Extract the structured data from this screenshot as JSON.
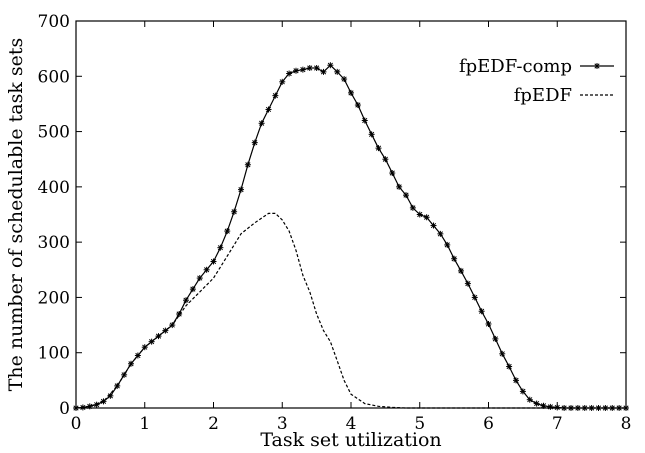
{
  "chart_data": {
    "type": "line",
    "xlabel": "Task set utilization",
    "ylabel": "The number of schedulable task sets",
    "xlim": [
      0,
      8
    ],
    "ylim": [
      0,
      700
    ],
    "xticks": [
      "0",
      "1",
      "2",
      "3",
      "4",
      "5",
      "6",
      "7",
      "8"
    ],
    "yticks": [
      "0",
      "100",
      "200",
      "300",
      "400",
      "500",
      "600",
      "700"
    ],
    "grid": false,
    "legend_position": "top-right",
    "series": [
      {
        "name": "fpEDF-comp",
        "style": "solid-with-star-markers",
        "color": "#000000",
        "x": [
          0,
          0.1,
          0.2,
          0.3,
          0.4,
          0.5,
          0.6,
          0.7,
          0.8,
          0.9,
          1.0,
          1.1,
          1.2,
          1.3,
          1.4,
          1.5,
          1.6,
          1.7,
          1.8,
          1.9,
          2.0,
          2.1,
          2.2,
          2.3,
          2.4,
          2.5,
          2.6,
          2.7,
          2.8,
          2.9,
          3.0,
          3.1,
          3.2,
          3.3,
          3.4,
          3.5,
          3.6,
          3.7,
          3.8,
          3.9,
          4.0,
          4.1,
          4.2,
          4.3,
          4.4,
          4.5,
          4.6,
          4.7,
          4.8,
          4.9,
          5.0,
          5.1,
          5.2,
          5.3,
          5.4,
          5.5,
          5.6,
          5.7,
          5.8,
          5.9,
          6.0,
          6.1,
          6.2,
          6.3,
          6.4,
          6.5,
          6.6,
          6.7,
          6.8,
          6.9,
          7.0,
          7.1,
          7.2,
          7.3,
          7.4,
          7.5,
          7.6,
          7.7,
          7.8,
          7.9,
          8.0
        ],
        "y": [
          0,
          1,
          3,
          6,
          12,
          22,
          40,
          60,
          80,
          95,
          110,
          120,
          130,
          140,
          150,
          170,
          195,
          215,
          235,
          250,
          265,
          290,
          320,
          355,
          395,
          440,
          480,
          515,
          540,
          565,
          590,
          605,
          610,
          612,
          615,
          615,
          608,
          620,
          608,
          595,
          570,
          548,
          520,
          495,
          470,
          450,
          425,
          400,
          385,
          362,
          350,
          345,
          330,
          315,
          295,
          270,
          248,
          225,
          200,
          175,
          152,
          125,
          98,
          75,
          50,
          30,
          15,
          8,
          4,
          2,
          1,
          0,
          0,
          0,
          0,
          0,
          0,
          0,
          0,
          0,
          0
        ]
      },
      {
        "name": "fpEDF",
        "style": "dashed",
        "color": "#000000",
        "x": [
          0,
          0.2,
          0.4,
          0.6,
          0.8,
          1.0,
          1.2,
          1.4,
          1.6,
          1.8,
          2.0,
          2.2,
          2.4,
          2.6,
          2.8,
          2.9,
          3.0,
          3.1,
          3.2,
          3.3,
          3.4,
          3.5,
          3.6,
          3.7,
          3.8,
          3.9,
          4.0,
          4.2,
          4.4,
          4.6,
          4.8,
          5.0,
          6.0,
          7.0,
          8.0
        ],
        "y": [
          0,
          3,
          12,
          40,
          80,
          110,
          130,
          150,
          185,
          210,
          235,
          275,
          315,
          335,
          352,
          352,
          340,
          320,
          285,
          240,
          210,
          170,
          140,
          120,
          85,
          50,
          25,
          8,
          3,
          1,
          0,
          0,
          0,
          0,
          0
        ]
      }
    ]
  }
}
